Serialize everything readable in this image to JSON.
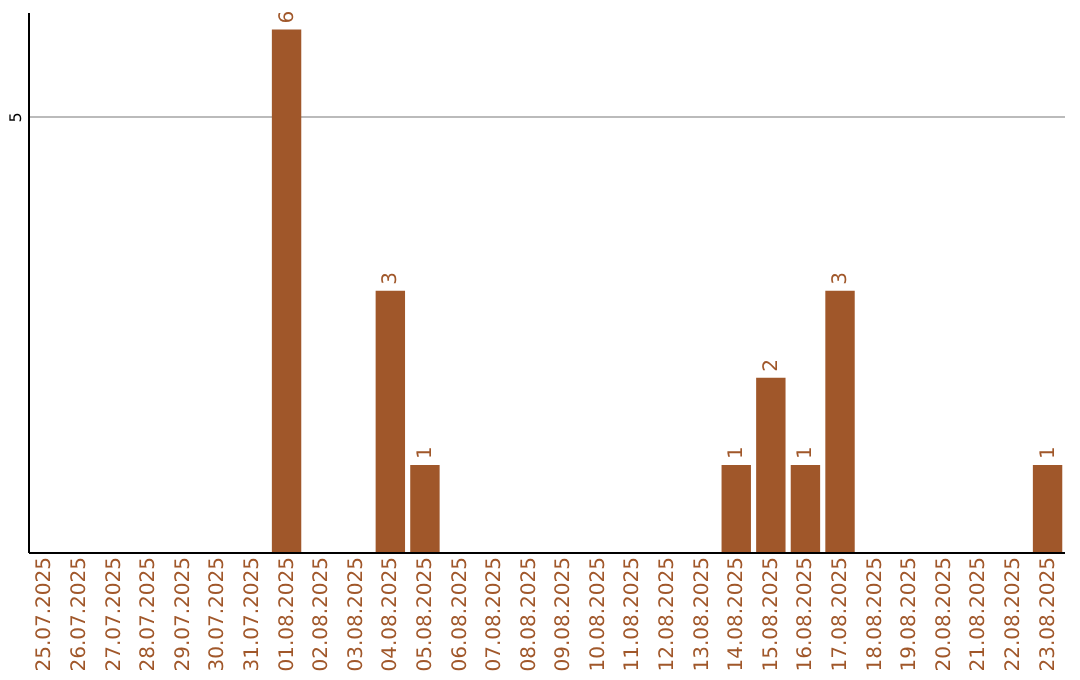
{
  "chart_data": {
    "type": "bar",
    "categories": [
      "25.07.2025",
      "26.07.2025",
      "27.07.2025",
      "28.07.2025",
      "29.07.2025",
      "30.07.2025",
      "31.07.2025",
      "01.08.2025",
      "02.08.2025",
      "03.08.2025",
      "04.08.2025",
      "05.08.2025",
      "06.08.2025",
      "07.08.2025",
      "08.08.2025",
      "09.08.2025",
      "10.08.2025",
      "11.08.2025",
      "12.08.2025",
      "13.08.2025",
      "14.08.2025",
      "15.08.2025",
      "16.08.2025",
      "17.08.2025",
      "18.08.2025",
      "19.08.2025",
      "20.08.2025",
      "21.08.2025",
      "22.08.2025",
      "23.08.2025"
    ],
    "values": [
      0,
      0,
      0,
      0,
      0,
      0,
      0,
      6,
      0,
      0,
      3,
      1,
      0,
      0,
      0,
      0,
      0,
      0,
      0,
      0,
      1,
      2,
      1,
      3,
      0,
      0,
      0,
      0,
      0,
      1
    ],
    "value_labels": [
      null,
      null,
      null,
      null,
      null,
      null,
      null,
      "6",
      null,
      null,
      "3",
      "1",
      null,
      null,
      null,
      null,
      null,
      null,
      null,
      null,
      "1",
      "2",
      "1",
      "3",
      null,
      null,
      null,
      null,
      null,
      "1"
    ],
    "color": "#a0572a",
    "ylim": [
      0,
      6.2
    ],
    "yticks": [
      5
    ],
    "grid": "y"
  }
}
